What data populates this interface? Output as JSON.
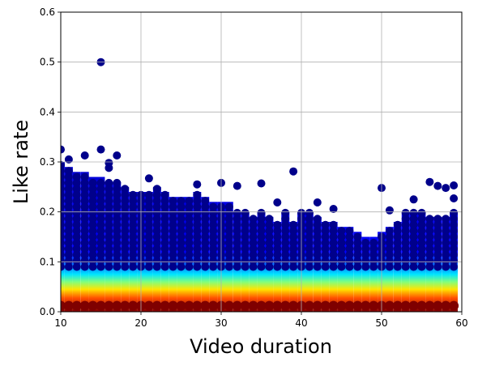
{
  "chart_data": {
    "type": "scatter",
    "title": "",
    "xlabel": "Video duration",
    "ylabel": "Like rate",
    "xlim": [
      10,
      60
    ],
    "ylim": [
      0,
      0.6
    ],
    "xticks": [
      "10",
      "20",
      "30",
      "40",
      "50",
      "60"
    ],
    "yticks": [
      "0.0",
      "0.1",
      "0.2",
      "0.3",
      "0.4",
      "0.5",
      "0.6"
    ],
    "grid": true,
    "legend": "none",
    "colormap": [
      "#00007f",
      "#0000ff",
      "#0080ff",
      "#00e5ff",
      "#7fff7f",
      "#ffe500",
      "#ff4d00",
      "#7f0000"
    ],
    "point_color": "#00008b",
    "outliers": [
      {
        "x": 15,
        "y": 0.5
      },
      {
        "x": 10,
        "y": 0.325
      },
      {
        "x": 15,
        "y": 0.325
      },
      {
        "x": 13,
        "y": 0.313
      },
      {
        "x": 17,
        "y": 0.313
      },
      {
        "x": 16,
        "y": 0.298
      },
      {
        "x": 16,
        "y": 0.288
      },
      {
        "x": 11,
        "y": 0.305
      },
      {
        "x": 39,
        "y": 0.281
      },
      {
        "x": 21,
        "y": 0.267
      },
      {
        "x": 27,
        "y": 0.255
      },
      {
        "x": 30,
        "y": 0.258
      },
      {
        "x": 32,
        "y": 0.252
      },
      {
        "x": 35,
        "y": 0.257
      },
      {
        "x": 56,
        "y": 0.26
      },
      {
        "x": 50,
        "y": 0.248
      },
      {
        "x": 57,
        "y": 0.252
      },
      {
        "x": 58,
        "y": 0.248
      },
      {
        "x": 59,
        "y": 0.253
      },
      {
        "x": 37,
        "y": 0.219
      },
      {
        "x": 42,
        "y": 0.219
      },
      {
        "x": 59,
        "y": 0.227
      },
      {
        "x": 54,
        "y": 0.225
      },
      {
        "x": 44,
        "y": 0.206
      },
      {
        "x": 51,
        "y": 0.203
      }
    ],
    "envelope_top": [
      {
        "x": 10,
        "y": 0.3
      },
      {
        "x": 11,
        "y": 0.29
      },
      {
        "x": 12,
        "y": 0.28
      },
      {
        "x": 13,
        "y": 0.28
      },
      {
        "x": 14,
        "y": 0.27
      },
      {
        "x": 15,
        "y": 0.27
      },
      {
        "x": 16,
        "y": 0.26
      },
      {
        "x": 17,
        "y": 0.26
      },
      {
        "x": 18,
        "y": 0.25
      },
      {
        "x": 19,
        "y": 0.24
      },
      {
        "x": 20,
        "y": 0.24
      },
      {
        "x": 21,
        "y": 0.24
      },
      {
        "x": 22,
        "y": 0.25
      },
      {
        "x": 23,
        "y": 0.24
      },
      {
        "x": 24,
        "y": 0.23
      },
      {
        "x": 25,
        "y": 0.23
      },
      {
        "x": 26,
        "y": 0.23
      },
      {
        "x": 27,
        "y": 0.24
      },
      {
        "x": 28,
        "y": 0.23
      },
      {
        "x": 29,
        "y": 0.22
      },
      {
        "x": 30,
        "y": 0.22
      },
      {
        "x": 31,
        "y": 0.22
      },
      {
        "x": 32,
        "y": 0.2
      },
      {
        "x": 33,
        "y": 0.2
      },
      {
        "x": 34,
        "y": 0.19
      },
      {
        "x": 35,
        "y": 0.2
      },
      {
        "x": 36,
        "y": 0.19
      },
      {
        "x": 37,
        "y": 0.18
      },
      {
        "x": 38,
        "y": 0.2
      },
      {
        "x": 39,
        "y": 0.18
      },
      {
        "x": 40,
        "y": 0.2
      },
      {
        "x": 41,
        "y": 0.2
      },
      {
        "x": 42,
        "y": 0.19
      },
      {
        "x": 43,
        "y": 0.18
      },
      {
        "x": 44,
        "y": 0.18
      },
      {
        "x": 45,
        "y": 0.17
      },
      {
        "x": 46,
        "y": 0.17
      },
      {
        "x": 47,
        "y": 0.16
      },
      {
        "x": 48,
        "y": 0.15
      },
      {
        "x": 49,
        "y": 0.15
      },
      {
        "x": 50,
        "y": 0.16
      },
      {
        "x": 51,
        "y": 0.17
      },
      {
        "x": 52,
        "y": 0.18
      },
      {
        "x": 53,
        "y": 0.2
      },
      {
        "x": 54,
        "y": 0.2
      },
      {
        "x": 55,
        "y": 0.2
      },
      {
        "x": 56,
        "y": 0.19
      },
      {
        "x": 57,
        "y": 0.19
      },
      {
        "x": 58,
        "y": 0.19
      },
      {
        "x": 59,
        "y": 0.2
      }
    ],
    "density_peak_y": 0.012
  }
}
